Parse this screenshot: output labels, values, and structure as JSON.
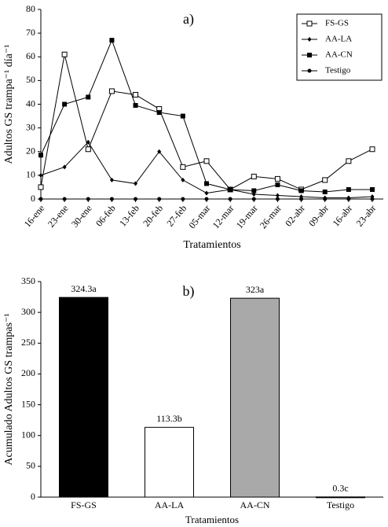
{
  "chart_data": [
    {
      "type": "line",
      "title": "a)",
      "x_label": "Tratamientos",
      "y_label": "Adultos GS trampa⁻¹ día⁻¹",
      "categories": [
        "16-ene",
        "23-ene",
        "30-ene",
        "06-feb",
        "13-feb",
        "20-feb",
        "27-feb",
        "05-mar",
        "12-mar",
        "19-mar",
        "26-mar",
        "02-abr",
        "09-abr",
        "16-abr",
        "23-abr"
      ],
      "series": [
        {
          "name": "FS-GS",
          "color": "#000000",
          "marker": "square-open",
          "values": [
            5,
            61,
            21,
            45.5,
            44,
            38,
            13.5,
            16,
            4,
            9.5,
            8.5,
            4,
            8,
            16,
            21
          ]
        },
        {
          "name": "AA-LA",
          "color": "#000000",
          "marker": "diamond",
          "values": [
            10,
            13.5,
            24,
            8,
            6.5,
            20,
            8,
            2.5,
            4,
            2,
            1.5,
            1,
            0.5,
            0.5,
            1
          ]
        },
        {
          "name": "AA-CN",
          "color": "#000000",
          "marker": "square",
          "values": [
            18.5,
            40,
            43,
            67,
            39.5,
            36.5,
            35,
            6.5,
            4,
            3.5,
            6,
            3.5,
            3,
            4,
            4
          ]
        },
        {
          "name": "Testigo",
          "color": "#000000",
          "marker": "circle",
          "values": [
            0,
            0,
            0,
            0,
            0,
            0,
            0,
            0,
            0,
            0,
            0,
            0,
            0,
            0,
            0
          ]
        }
      ],
      "ylim": [
        0,
        80
      ],
      "yticks": [
        0,
        10,
        20,
        30,
        40,
        50,
        60,
        70,
        80
      ],
      "legend": "upper right"
    },
    {
      "type": "bar",
      "title": "b)",
      "x_label": "Tratamientos",
      "y_label": "Acumulado Adultos GS trampas⁻¹",
      "categories": [
        "FS-GS",
        "AA-LA",
        "AA-CN",
        "Testigo"
      ],
      "values": [
        324.3,
        113.3,
        323,
        0.3
      ],
      "value_labels": [
        "324.3a",
        "113.3b",
        "323a",
        "0.3c"
      ],
      "colors": [
        "#000000",
        "#ffffff",
        "#a9a9a9",
        "#000000"
      ],
      "ylim": [
        0,
        350
      ],
      "yticks": [
        0,
        50,
        100,
        150,
        200,
        250,
        300,
        350
      ]
    }
  ]
}
